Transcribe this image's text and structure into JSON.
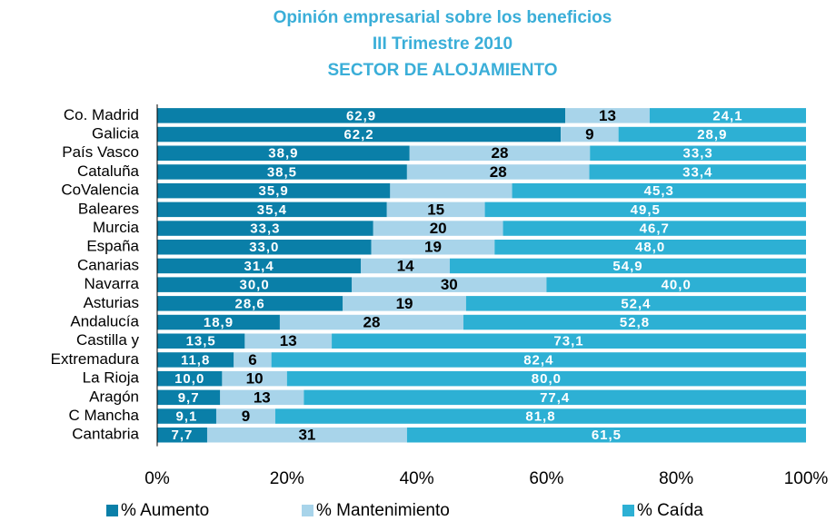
{
  "chart_data": {
    "type": "stacked_bar_horizontal",
    "title": [
      "Opinión empresarial sobre los beneficios",
      "III Trimestre 2010",
      "SECTOR DE ALOJAMIENTO"
    ],
    "categories": [
      "Co. Madrid",
      "Galicia",
      "País Vasco",
      "Cataluña",
      "CoValencia",
      "Baleares",
      "Murcia",
      "España",
      "Canarias",
      "Navarra",
      "Asturias",
      "Andalucía",
      "Castilla y",
      "Extremadura",
      "La Rioja",
      "Aragón",
      "C Mancha",
      "Cantabria"
    ],
    "series": [
      {
        "name": "% Aumento",
        "color": "#0a7fa8",
        "values": [
          62.9,
          62.2,
          38.9,
          38.5,
          35.9,
          35.4,
          33.3,
          33.0,
          31.4,
          30.0,
          28.6,
          18.9,
          13.5,
          11.8,
          10.0,
          9.7,
          9.1,
          7.7
        ],
        "value_labels": [
          "62,9",
          "62,2",
          "38,9",
          "38,5",
          "35,9",
          "35,4",
          "33,3",
          "33,0",
          "31,4",
          "30,0",
          "28,6",
          "18,9",
          "13,5",
          "11,8",
          "10,0",
          "9,7",
          "9,1",
          "7,7"
        ]
      },
      {
        "name": "% Mantenimiento",
        "color": "#a8d4ea",
        "values": [
          13.0,
          8.9,
          27.8,
          28.1,
          18.8,
          15.1,
          20.0,
          19.0,
          13.7,
          30.0,
          19.0,
          28.3,
          13.4,
          5.8,
          10.0,
          12.9,
          9.1,
          30.8
        ],
        "value_labels": [
          "13",
          "9",
          "28",
          "28",
          null,
          "15",
          "20",
          "19",
          "14",
          "30",
          "19",
          "28",
          "13",
          "6",
          "10",
          "13",
          "9",
          "31"
        ]
      },
      {
        "name": "% Caída",
        "color": "#2db0d4",
        "values": [
          24.1,
          28.9,
          33.3,
          33.4,
          45.3,
          49.5,
          46.7,
          48.0,
          54.9,
          40.0,
          52.4,
          52.8,
          73.1,
          82.4,
          80.0,
          77.4,
          81.8,
          61.5
        ],
        "value_labels": [
          "24,1",
          "28,9",
          "33,3",
          "33,4",
          "45,3",
          "49,5",
          "46,7",
          "48,0",
          "54,9",
          "40,0",
          "52,4",
          "52,8",
          "73,1",
          "82,4",
          "80,0",
          "77,4",
          "81,8",
          "61,5"
        ]
      }
    ],
    "xlim": [
      0,
      100
    ],
    "xticks": [
      {
        "value": 0,
        "label": "0%"
      },
      {
        "value": 20,
        "label": "20%"
      },
      {
        "value": 40,
        "label": "40%"
      },
      {
        "value": 60,
        "label": "60%"
      },
      {
        "value": 80,
        "label": "80%"
      },
      {
        "value": 100,
        "label": "100%"
      }
    ]
  }
}
